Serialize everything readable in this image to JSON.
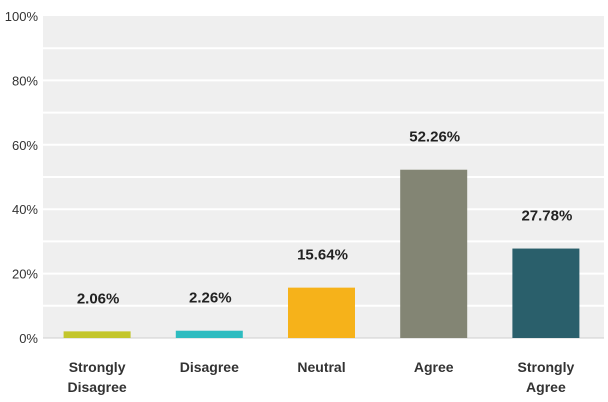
{
  "chart_data": {
    "type": "bar",
    "categories": [
      [
        "Strongly",
        "Disagree"
      ],
      [
        "Disagree"
      ],
      [
        "Neutral"
      ],
      [
        "Agree"
      ],
      [
        "Strongly",
        "Agree"
      ]
    ],
    "values": [
      2.06,
      2.26,
      15.64,
      52.26,
      27.78
    ],
    "data_labels": [
      "2.06%",
      "2.26%",
      "15.64%",
      "52.26%",
      "27.78%"
    ],
    "bar_colors": [
      "#c3c62c",
      "#2ebcc0",
      "#f6b21a",
      "#838574",
      "#2a5f6b"
    ],
    "yticks": [
      0,
      20,
      40,
      60,
      80,
      100
    ],
    "ytick_labels": [
      "0%",
      "20%",
      "40%",
      "60%",
      "80%",
      "100%"
    ],
    "ylim": [
      0,
      100
    ],
    "grid": true,
    "plot_background": "#efefef",
    "gridline_color": "#ffffff",
    "title": "",
    "xlabel": "",
    "ylabel": ""
  }
}
